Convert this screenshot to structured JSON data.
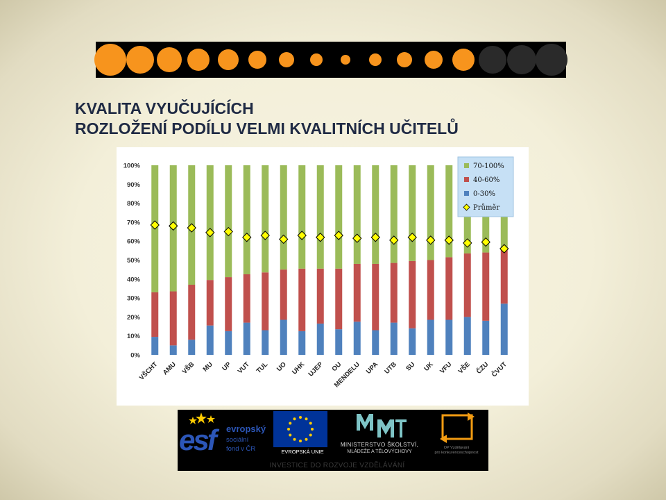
{
  "slide": {
    "title_line1": "KVALITA VYUČUJÍCÍCH",
    "title_line2": "ROZLOŽENÍ PODÍLU VELMI KVALITNÍCH UČITELŮ"
  },
  "decor": {
    "dot_colors": [
      "#f7941d",
      "#f7941d",
      "#f7941d",
      "#f7941d",
      "#f7941d",
      "#f7941d",
      "#f7941d",
      "#f7941d",
      "#f7941d",
      "#f7941d",
      "#f7941d",
      "#f7941d",
      "#f7941d",
      "#2a2a2a",
      "#2a2a2a",
      "#2a2a2a"
    ],
    "dot_diameters": [
      46,
      40,
      36,
      32,
      30,
      26,
      22,
      18,
      14,
      18,
      22,
      26,
      32,
      40,
      42,
      46
    ]
  },
  "chart_data": {
    "type": "bar",
    "stacked": true,
    "categories": [
      "VŠCHT",
      "AMU",
      "VŠB",
      "MU",
      "UP",
      "VUT",
      "TUL",
      "UO",
      "UHK",
      "UJEP",
      "OU",
      "MENDELU",
      "UPA",
      "UTB",
      "SU",
      "UK",
      "VFU",
      "VŠE",
      "ČZU",
      "ČVUT"
    ],
    "series": [
      {
        "name": "0-30%",
        "color": "#4f81bd",
        "values": [
          9.5,
          5,
          8,
          15.5,
          12.5,
          17,
          13,
          18.5,
          12.5,
          16.5,
          13.5,
          17.5,
          13,
          17,
          14,
          18.5,
          18.5,
          20,
          18,
          27
        ]
      },
      {
        "name": "40-60%",
        "color": "#c0504d",
        "values": [
          23.5,
          28.5,
          29,
          24,
          28.5,
          25.5,
          30.5,
          26.5,
          33,
          29,
          32,
          30.5,
          35,
          31.5,
          35.5,
          31.5,
          33,
          33.5,
          36,
          29
        ]
      },
      {
        "name": "70-100%",
        "color": "#9bbb59",
        "values": [
          67,
          66.5,
          63,
          60.5,
          59,
          57.5,
          56.5,
          55,
          54.5,
          54.5,
          54.5,
          52,
          52,
          51.5,
          50.5,
          50,
          48.5,
          46.5,
          46,
          44
        ]
      }
    ],
    "average": {
      "name": "Průměr",
      "color": "#ffff00",
      "values": [
        68.5,
        68,
        67,
        64.5,
        65,
        62,
        63,
        61,
        63,
        62,
        63,
        61.5,
        62,
        60.5,
        62,
        60.5,
        60.5,
        59,
        59.5,
        56
      ]
    },
    "yticks": [
      "0%",
      "10%",
      "20%",
      "30%",
      "40%",
      "50%",
      "60%",
      "70%",
      "80%",
      "90%",
      "100%"
    ],
    "ylim": [
      0,
      100
    ],
    "legend_position": "top-right",
    "grid": false
  },
  "footer": {
    "esf_letters": "esf",
    "esf_brand": "evropský",
    "esf_line2": "sociální",
    "esf_line3": "fond v ČR",
    "eu_label": "EVROPSKÁ UNIE",
    "msmt_line1": "MINISTERSTVO ŠKOLSTVÍ,",
    "msmt_line2": "MLÁDEŽE A TĚLOVÝCHOVY",
    "op_line1": "OP Vzdělávání",
    "op_line2": "pro konkurenceschopnost",
    "slogan": "INVESTICE DO ROZVOJE VZDĚLÁVÁNÍ"
  }
}
